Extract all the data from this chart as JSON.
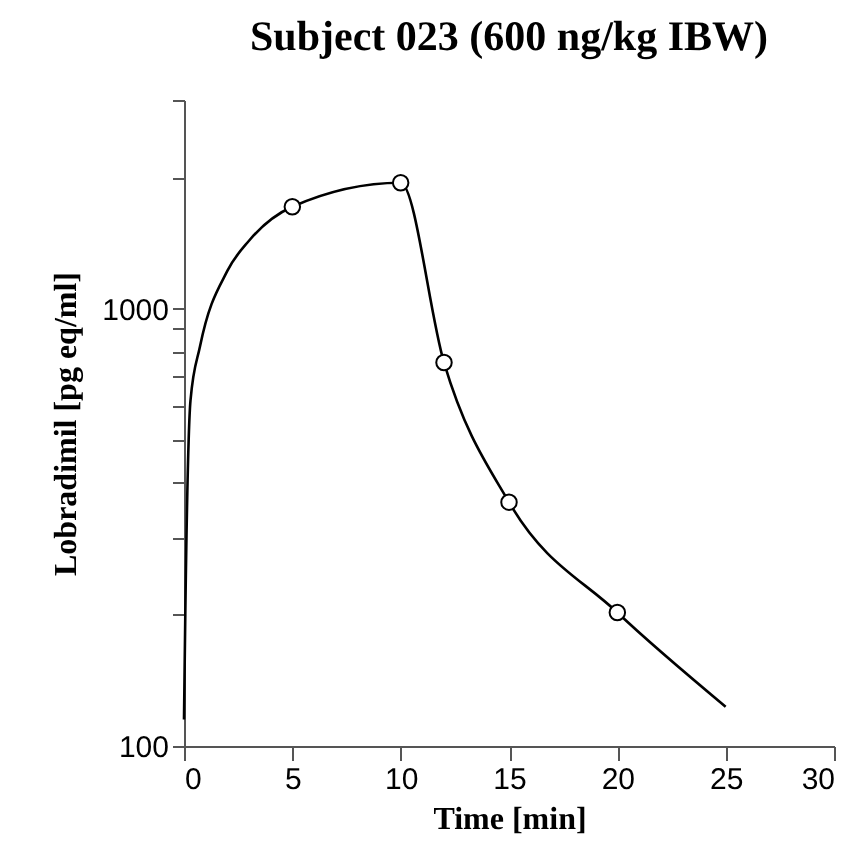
{
  "chart_data": {
    "type": "line",
    "title": "Subject 023 (600 ng/kg IBW)",
    "xlabel": "Time [min]",
    "ylabel": "Lobradimil [pg eq/ml]",
    "log": "y",
    "xlim": [
      0,
      30
    ],
    "xticks": [
      0,
      5,
      10,
      15,
      20,
      25,
      30
    ],
    "ylim": [
      100,
      3000
    ],
    "yticks": [
      100,
      {
        "value": 200,
        "label": null
      },
      {
        "value": 300,
        "label": null
      },
      {
        "value": 400,
        "label": null
      },
      {
        "value": 500,
        "label": null
      },
      {
        "value": 600,
        "label": null
      },
      {
        "value": 700,
        "label": null
      },
      {
        "value": 800,
        "label": null
      },
      {
        "value": 900,
        "label": null
      },
      1000,
      {
        "value": 2000,
        "label": null
      },
      {
        "value": 3000,
        "label": null
      }
    ],
    "grid": false,
    "series": [
      {
        "type": "line",
        "color": "#000000",
        "marker": "none",
        "x": [
          0,
          0.06,
          0.3,
          0.74,
          2,
          3,
          5,
          10,
          12,
          15,
          20,
          25
        ],
        "values": [
          115,
          200,
          617,
          820,
          1220,
          1430,
          1710,
          1940,
          753,
          361,
          202,
          123
        ]
      },
      {
        "type": "scatter",
        "color": "#000000",
        "marker": "circle",
        "x": [
          5,
          10,
          12,
          15,
          20
        ],
        "values": [
          1710,
          1940,
          753,
          361,
          202
        ]
      }
    ]
  }
}
